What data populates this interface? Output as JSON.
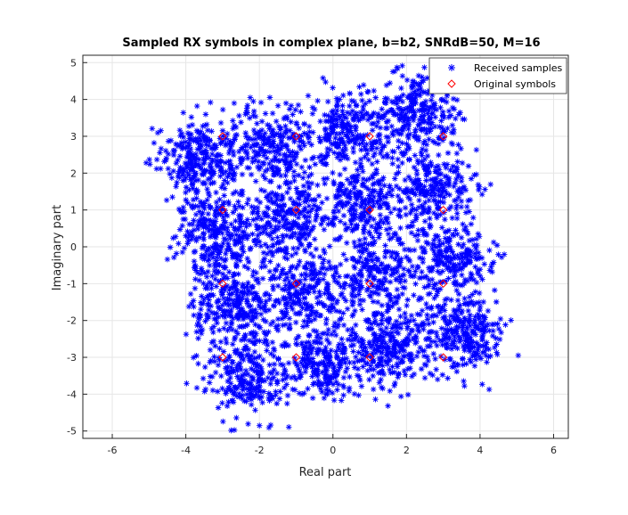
{
  "chart_data": {
    "type": "scatter",
    "title": "Sampled RX symbols in complex plane, b=b2, SNRdB=50, M=16",
    "xlabel": "Real part",
    "ylabel": "Imaginary part",
    "xlim": [
      -6.8,
      6.4
    ],
    "ylim": [
      -5.2,
      5.2
    ],
    "xticks": [
      "-6",
      "-4",
      "-2",
      "0",
      "2",
      "4",
      "6"
    ],
    "yticks": [
      "-5",
      "-4",
      "-3",
      "-2",
      "-1",
      "0",
      "1",
      "2",
      "3",
      "4",
      "5"
    ],
    "grid": true,
    "legend_position": "top-right",
    "series": [
      {
        "name": "Received samples",
        "marker": "asterisk",
        "color": "#0000ff",
        "distribution": {
          "centers": [
            -3,
            -1,
            1,
            3
          ],
          "rotation_deg": 12,
          "spread": 1.0,
          "count": 4200
        }
      },
      {
        "name": "Original symbols",
        "marker": "diamond",
        "color": "#ff0000",
        "x": [
          -3,
          -3,
          -3,
          -3,
          -1,
          -1,
          -1,
          -1,
          1,
          1,
          1,
          1,
          3,
          3,
          3,
          3
        ],
        "y": [
          -3,
          -1,
          1,
          3,
          -3,
          -1,
          1,
          3,
          -3,
          -1,
          1,
          3,
          -3,
          -1,
          1,
          3
        ]
      }
    ]
  }
}
